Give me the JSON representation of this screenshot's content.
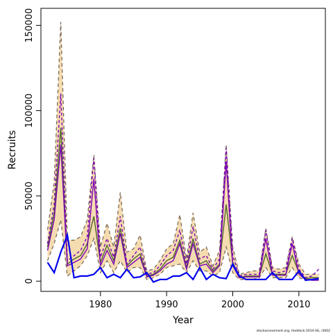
{
  "chart_data": {
    "type": "line",
    "xlabel": "Year",
    "ylabel": "Recruits",
    "xlim": [
      1971,
      2014
    ],
    "ylim": [
      -6000,
      160000
    ],
    "x_ticks": [
      1980,
      1990,
      2000,
      2010
    ],
    "y_ticks": [
      0,
      50000,
      100000,
      150000
    ],
    "credit": "stockassessment.org, Haddock-2014-S6, r3002",
    "grid": false,
    "colors": {
      "band_fill": "#f5dcb0",
      "band_edge": "#7a6a5a",
      "estimate": "#556b2f",
      "retro": "#7a00b4",
      "observed": "#0000ee"
    },
    "years": [
      1972,
      1973,
      1974,
      1975,
      1976,
      1977,
      1978,
      1979,
      1980,
      1981,
      1982,
      1983,
      1984,
      1985,
      1986,
      1987,
      1988,
      1989,
      1990,
      1991,
      1992,
      1993,
      1994,
      1995,
      1996,
      1997,
      1998,
      1999,
      2000,
      2001,
      2002,
      2003,
      2004,
      2005,
      2006,
      2007,
      2008,
      2009,
      2010,
      2011,
      2012,
      2013
    ],
    "series": [
      {
        "role": "band-upper",
        "values": [
          30000,
          58000,
          152000,
          24000,
          24000,
          26000,
          36000,
          74000,
          20000,
          34000,
          20000,
          52000,
          17000,
          19000,
          27000,
          6000,
          7000,
          12000,
          19000,
          22000,
          39000,
          13000,
          40000,
          17000,
          20000,
          9000,
          18000,
          80000,
          20000,
          4000,
          5000,
          6000,
          6000,
          31000,
          8000,
          7000,
          8000,
          26000,
          10000,
          4000,
          4000,
          4000
        ]
      },
      {
        "role": "band-lower",
        "values": [
          12000,
          22000,
          36000,
          3000,
          6000,
          9000,
          15000,
          25000,
          5000,
          12000,
          5000,
          12000,
          5000,
          8000,
          8000,
          1000,
          2000,
          4000,
          8000,
          9000,
          10000,
          5000,
          12000,
          6000,
          6000,
          3000,
          5000,
          20000,
          5000,
          1000,
          1000,
          1000,
          2000,
          8000,
          2000,
          2000,
          2000,
          8000,
          2000,
          1000,
          1000,
          1000
        ]
      },
      {
        "role": "estimate",
        "values": [
          20000,
          40000,
          90000,
          10000,
          13000,
          15000,
          22000,
          38000,
          11000,
          21000,
          12000,
          31000,
          9000,
          13000,
          16000,
          3000,
          4000,
          7000,
          12000,
          14000,
          24000,
          8000,
          25000,
          10000,
          12000,
          6000,
          10000,
          45000,
          11000,
          2000,
          3000,
          3000,
          3000,
          16000,
          4000,
          4000,
          4000,
          15000,
          5000,
          1500,
          2000,
          2000
        ]
      },
      {
        "role": "retro",
        "values": [
          22000,
          45000,
          110000,
          12000,
          15000,
          18000,
          26000,
          72000,
          14000,
          25000,
          14000,
          38000,
          10000,
          15000,
          20000,
          4000,
          5000,
          9000,
          15000,
          18000,
          30000,
          10000,
          32000,
          13000,
          15000,
          7000,
          13000,
          78000,
          15000,
          3000,
          4000,
          4000,
          4000,
          30000,
          6000,
          5000,
          6000,
          25000,
          7000,
          2000,
          3000,
          7000
        ]
      },
      {
        "role": "retro",
        "values": [
          18000,
          36000,
          80000,
          9000,
          11000,
          13000,
          19000,
          60000,
          9000,
          18000,
          10000,
          28000,
          8000,
          11000,
          14000,
          2500,
          3500,
          6000,
          10000,
          12000,
          22000,
          7000,
          22000,
          9000,
          10000,
          5000,
          9000,
          70000,
          9000,
          2000,
          2500,
          2500,
          2500,
          25000,
          3500,
          3500,
          3500,
          22000,
          4000,
          1000,
          500,
          500
        ]
      },
      {
        "role": "observed",
        "values": [
          11000,
          5000,
          17000,
          27000,
          2000,
          3000,
          3000,
          4000,
          8000,
          2000,
          4000,
          2000,
          7000,
          2000,
          2500,
          5000,
          -500,
          1000,
          1000,
          3000,
          3000,
          5000,
          1000,
          8000,
          1000,
          4000,
          2000,
          1500,
          10000,
          3000,
          1000,
          1000,
          1000,
          1000,
          5000,
          1000,
          1000,
          1000,
          6000,
          500,
          1000,
          1500
        ]
      }
    ]
  }
}
